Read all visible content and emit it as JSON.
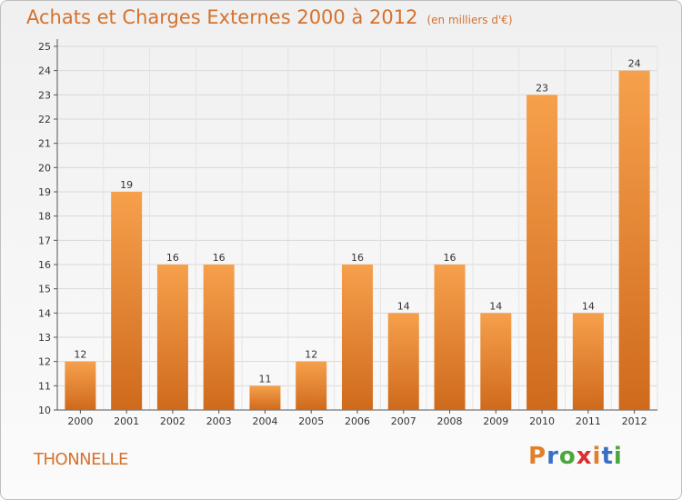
{
  "header": {
    "title": "Achats et Charges Externes 2000 à 2012",
    "unit": "(en milliers d'€)"
  },
  "footer": {
    "commune": "THONNELLE",
    "logo": [
      "P",
      "r",
      "o",
      "x",
      "i",
      "t",
      "i"
    ]
  },
  "colors": {
    "bar_light": "#f6a04c",
    "bar_dark": "#cf6a1c",
    "title": "#d4722e",
    "logo": [
      "#e0802a",
      "#3a6fc4",
      "#4aa83a",
      "#d93030",
      "#e0802a",
      "#3a6fc4",
      "#4aa83a"
    ]
  },
  "chart_data": {
    "type": "bar",
    "title": "Achats et Charges Externes 2000 à 2012",
    "subtitle": "(en milliers d'€)",
    "categories": [
      "2000",
      "2001",
      "2002",
      "2003",
      "2004",
      "2005",
      "2006",
      "2007",
      "2008",
      "2009",
      "2010",
      "2011",
      "2012"
    ],
    "values": [
      12,
      19,
      16,
      16,
      11,
      12,
      16,
      14,
      16,
      14,
      23,
      14,
      24
    ],
    "ylim": [
      10,
      25
    ],
    "yticks": [
      10,
      11,
      12,
      13,
      14,
      15,
      16,
      17,
      18,
      19,
      20,
      21,
      22,
      23,
      24,
      25
    ],
    "grid": true
  }
}
